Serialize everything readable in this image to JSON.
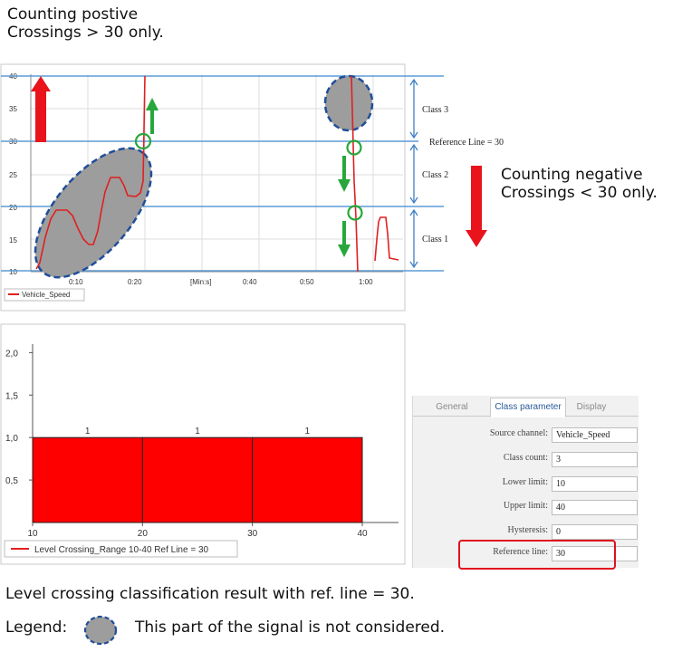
{
  "headings": {
    "positive": [
      "Counting postive",
      "Crossings > 30 only."
    ],
    "negative": [
      "Counting negative",
      "Crossings < 30 only."
    ]
  },
  "top_chart": {
    "y_ticks": [
      "10",
      "15",
      "20",
      "25",
      "30",
      "35",
      "40"
    ],
    "x_ticks": [
      "0:10",
      "0:20",
      "[Min:s]",
      "0:40",
      "0:50",
      "1:00"
    ],
    "class_labels": [
      "Class 3",
      "Class 2",
      "Class 1"
    ],
    "reference_label": "Reference Line = 30",
    "legend": "Vehicle_Speed",
    "colors": {
      "signal": "#e02020",
      "arrow_up": "#e8131b",
      "green": "#27a73c",
      "level_line": "#5b9bd5",
      "ignored_fill": "#9d9d9d",
      "ignored_border": "#1f4e99"
    }
  },
  "chart_data": {
    "type": "bar",
    "categories": [
      "10-20",
      "20-30",
      "30-40"
    ],
    "bin_edges": [
      10,
      20,
      30,
      40
    ],
    "values": [
      1,
      1,
      1
    ],
    "data_labels": [
      "1",
      "1",
      "1"
    ],
    "x_ticks": [
      "10",
      "20",
      "30",
      "40"
    ],
    "y_ticks": [
      "0,5",
      "1,0",
      "1,5",
      "2,0"
    ],
    "ylim": [
      0,
      2.1
    ],
    "legend": "Level Crossing_Range 10-40 Ref Line = 30",
    "color": "#ff0000"
  },
  "panel": {
    "tabs": [
      "General",
      "Class parameter",
      "Display"
    ],
    "active_tab": "Class parameter",
    "rows": [
      {
        "label": "Source channel:",
        "value": "Vehicle_Speed"
      },
      {
        "label": "Class count:",
        "value": "3"
      },
      {
        "label": "Lower limit:",
        "value": "10"
      },
      {
        "label": "Upper limit:",
        "value": "40"
      },
      {
        "label": "Hysteresis:",
        "value": "0"
      },
      {
        "label": "Reference line:",
        "value": "30"
      }
    ]
  },
  "caption": "Level crossing classification result with ref. line = 30.",
  "legend_label": "Legend:",
  "legend_text": "This part of the signal is not considered."
}
